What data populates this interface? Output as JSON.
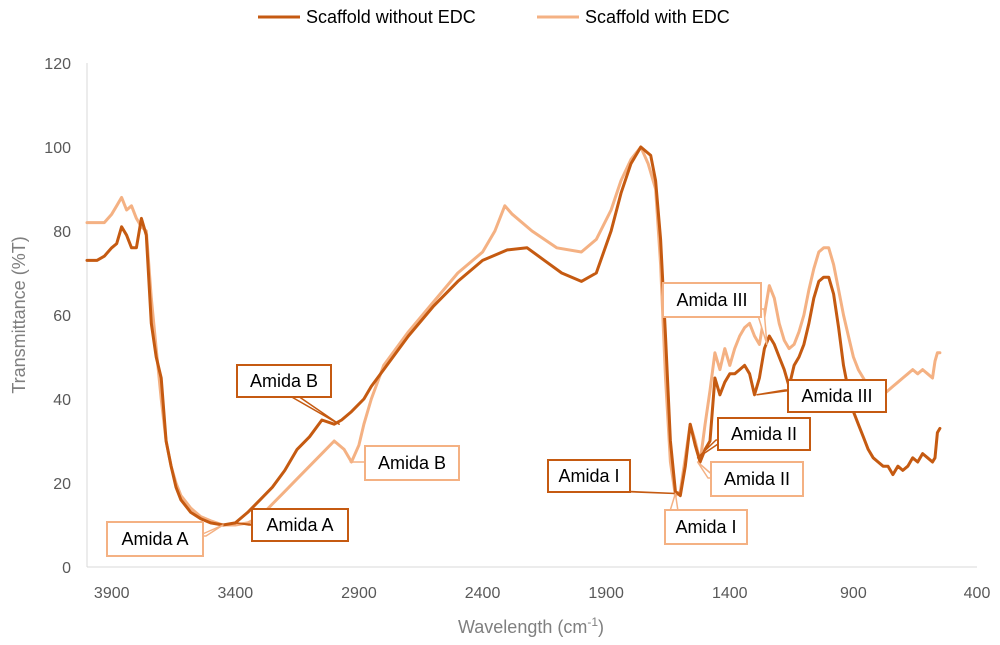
{
  "chart_data": {
    "type": "line",
    "xlabel": "Wavelength (cm",
    "xlabel_sup": "-1",
    "xlabel_end": ")",
    "ylabel": "Transmittance (%T)",
    "xlim": [
      4000,
      400
    ],
    "ylim": [
      0,
      120
    ],
    "x_ticks": [
      "3900",
      "3400",
      "2900",
      "2400",
      "1900",
      "1400",
      "900",
      "400"
    ],
    "y_ticks": [
      "0",
      "20",
      "40",
      "60",
      "80",
      "100",
      "120"
    ],
    "grid": false,
    "legend_position": "top",
    "series": [
      {
        "name": "Scaffold without EDC",
        "color": "#c55a11",
        "points": [
          [
            4000,
            73
          ],
          [
            3960,
            73
          ],
          [
            3930,
            74
          ],
          [
            3900,
            76
          ],
          [
            3880,
            77
          ],
          [
            3860,
            81
          ],
          [
            3840,
            79
          ],
          [
            3820,
            76
          ],
          [
            3800,
            76
          ],
          [
            3780,
            83
          ],
          [
            3760,
            79
          ],
          [
            3740,
            58
          ],
          [
            3720,
            50
          ],
          [
            3700,
            45
          ],
          [
            3680,
            30
          ],
          [
            3660,
            24
          ],
          [
            3640,
            19
          ],
          [
            3620,
            16
          ],
          [
            3580,
            13
          ],
          [
            3540,
            11.5
          ],
          [
            3500,
            10.5
          ],
          [
            3450,
            10
          ],
          [
            3400,
            10.5
          ],
          [
            3350,
            13
          ],
          [
            3300,
            16
          ],
          [
            3250,
            19
          ],
          [
            3200,
            23
          ],
          [
            3150,
            28
          ],
          [
            3100,
            31
          ],
          [
            3050,
            35
          ],
          [
            3000,
            34
          ],
          [
            2970,
            35
          ],
          [
            2930,
            37
          ],
          [
            2880,
            40
          ],
          [
            2850,
            43
          ],
          [
            2800,
            47
          ],
          [
            2700,
            55
          ],
          [
            2600,
            62
          ],
          [
            2500,
            68
          ],
          [
            2400,
            73
          ],
          [
            2300,
            75.5
          ],
          [
            2220,
            76
          ],
          [
            2150,
            73
          ],
          [
            2080,
            70
          ],
          [
            2000,
            68
          ],
          [
            1940,
            70
          ],
          [
            1880,
            80
          ],
          [
            1840,
            89
          ],
          [
            1800,
            96
          ],
          [
            1760,
            100
          ],
          [
            1720,
            98
          ],
          [
            1700,
            92
          ],
          [
            1680,
            78
          ],
          [
            1660,
            55
          ],
          [
            1640,
            30
          ],
          [
            1620,
            18
          ],
          [
            1600,
            17
          ],
          [
            1580,
            24
          ],
          [
            1560,
            34
          ],
          [
            1540,
            29
          ],
          [
            1520,
            25
          ],
          [
            1500,
            28
          ],
          [
            1480,
            30
          ],
          [
            1460,
            45
          ],
          [
            1440,
            41
          ],
          [
            1420,
            44
          ],
          [
            1400,
            46
          ],
          [
            1380,
            46
          ],
          [
            1360,
            47
          ],
          [
            1340,
            48
          ],
          [
            1320,
            46
          ],
          [
            1300,
            41
          ],
          [
            1280,
            45
          ],
          [
            1260,
            52
          ],
          [
            1240,
            55
          ],
          [
            1220,
            53
          ],
          [
            1200,
            50
          ],
          [
            1180,
            47
          ],
          [
            1160,
            43
          ],
          [
            1140,
            48
          ],
          [
            1120,
            50
          ],
          [
            1100,
            53
          ],
          [
            1080,
            58
          ],
          [
            1060,
            64
          ],
          [
            1040,
            68
          ],
          [
            1020,
            69
          ],
          [
            1000,
            69
          ],
          [
            980,
            65
          ],
          [
            960,
            57
          ],
          [
            940,
            48
          ],
          [
            920,
            42
          ],
          [
            900,
            37
          ],
          [
            880,
            34
          ],
          [
            860,
            31
          ],
          [
            840,
            28
          ],
          [
            820,
            26
          ],
          [
            800,
            25
          ],
          [
            780,
            24
          ],
          [
            760,
            24
          ],
          [
            740,
            22
          ],
          [
            720,
            24
          ],
          [
            700,
            23
          ],
          [
            680,
            24
          ],
          [
            660,
            26
          ],
          [
            640,
            25
          ],
          [
            620,
            27
          ],
          [
            600,
            26
          ],
          [
            580,
            25
          ],
          [
            570,
            26
          ],
          [
            560,
            32
          ],
          [
            550,
            33
          ]
        ]
      },
      {
        "name": "Scaffold with EDC",
        "color": "#f4b183",
        "points": [
          [
            4000,
            82
          ],
          [
            3960,
            82
          ],
          [
            3930,
            82
          ],
          [
            3900,
            84
          ],
          [
            3880,
            86
          ],
          [
            3860,
            88
          ],
          [
            3840,
            85
          ],
          [
            3820,
            86
          ],
          [
            3800,
            83
          ],
          [
            3780,
            81
          ],
          [
            3760,
            80
          ],
          [
            3740,
            64
          ],
          [
            3720,
            52
          ],
          [
            3700,
            40
          ],
          [
            3680,
            30
          ],
          [
            3660,
            24
          ],
          [
            3640,
            20
          ],
          [
            3620,
            17
          ],
          [
            3580,
            14
          ],
          [
            3540,
            12
          ],
          [
            3500,
            11
          ],
          [
            3450,
            10
          ],
          [
            3400,
            10
          ],
          [
            3350,
            10.5
          ],
          [
            3300,
            12
          ],
          [
            3250,
            15
          ],
          [
            3200,
            18
          ],
          [
            3150,
            21
          ],
          [
            3100,
            24
          ],
          [
            3050,
            27
          ],
          [
            3000,
            30
          ],
          [
            2960,
            28
          ],
          [
            2930,
            25
          ],
          [
            2900,
            29
          ],
          [
            2880,
            34
          ],
          [
            2850,
            40
          ],
          [
            2800,
            48
          ],
          [
            2700,
            56
          ],
          [
            2600,
            63
          ],
          [
            2500,
            70
          ],
          [
            2400,
            75
          ],
          [
            2350,
            80
          ],
          [
            2310,
            86
          ],
          [
            2280,
            84
          ],
          [
            2200,
            80
          ],
          [
            2100,
            76
          ],
          [
            2000,
            75
          ],
          [
            1940,
            78
          ],
          [
            1880,
            85
          ],
          [
            1840,
            92
          ],
          [
            1800,
            97
          ],
          [
            1760,
            100
          ],
          [
            1730,
            96
          ],
          [
            1700,
            90
          ],
          [
            1680,
            72
          ],
          [
            1660,
            45
          ],
          [
            1640,
            25
          ],
          [
            1620,
            17
          ],
          [
            1600,
            18
          ],
          [
            1580,
            26
          ],
          [
            1560,
            34
          ],
          [
            1540,
            30
          ],
          [
            1520,
            25
          ],
          [
            1500,
            34
          ],
          [
            1480,
            42
          ],
          [
            1460,
            51
          ],
          [
            1440,
            47
          ],
          [
            1420,
            52
          ],
          [
            1400,
            48
          ],
          [
            1380,
            52
          ],
          [
            1360,
            55
          ],
          [
            1340,
            57
          ],
          [
            1320,
            58
          ],
          [
            1300,
            55
          ],
          [
            1280,
            53
          ],
          [
            1260,
            60
          ],
          [
            1240,
            67
          ],
          [
            1220,
            64
          ],
          [
            1200,
            58
          ],
          [
            1180,
            54
          ],
          [
            1160,
            52
          ],
          [
            1140,
            53
          ],
          [
            1120,
            56
          ],
          [
            1100,
            60
          ],
          [
            1080,
            66
          ],
          [
            1060,
            71
          ],
          [
            1040,
            75
          ],
          [
            1020,
            76
          ],
          [
            1000,
            76
          ],
          [
            980,
            72
          ],
          [
            960,
            66
          ],
          [
            940,
            60
          ],
          [
            920,
            55
          ],
          [
            900,
            50
          ],
          [
            880,
            47
          ],
          [
            860,
            45
          ],
          [
            840,
            43
          ],
          [
            820,
            42
          ],
          [
            800,
            41
          ],
          [
            780,
            41
          ],
          [
            760,
            42
          ],
          [
            740,
            43
          ],
          [
            720,
            44
          ],
          [
            700,
            45
          ],
          [
            680,
            46
          ],
          [
            660,
            47
          ],
          [
            640,
            46
          ],
          [
            620,
            47
          ],
          [
            600,
            46
          ],
          [
            580,
            45
          ],
          [
            570,
            49
          ],
          [
            560,
            51
          ],
          [
            550,
            51
          ]
        ]
      }
    ],
    "annotations": [
      {
        "text": "Amida A",
        "series": 0
      },
      {
        "text": "Amida A",
        "series": 1
      },
      {
        "text": "Amida B",
        "series": 0
      },
      {
        "text": "Amida B",
        "series": 1
      },
      {
        "text": "Amida I",
        "series": 0
      },
      {
        "text": "Amida I",
        "series": 1
      },
      {
        "text": "Amida II",
        "series": 0
      },
      {
        "text": "Amida II",
        "series": 1
      },
      {
        "text": "Amida III",
        "series": 0
      },
      {
        "text": "Amida III",
        "series": 1
      }
    ]
  }
}
